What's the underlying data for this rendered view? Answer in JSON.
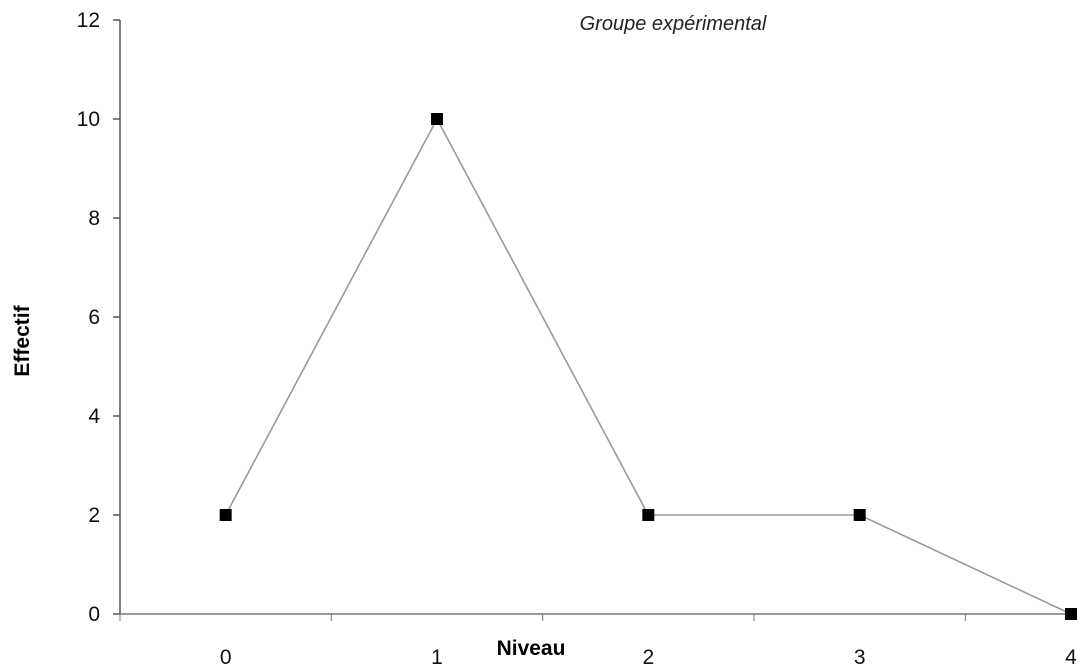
{
  "chart_data": {
    "type": "line",
    "title": "Groupe expérimental",
    "xlabel": "Niveau",
    "ylabel": "Effectif",
    "x": [
      0,
      1,
      2,
      3,
      4
    ],
    "x_tick_labels": [
      "0",
      "1",
      "2",
      "3",
      "4"
    ],
    "y_tick_labels": [
      "0",
      "2",
      "4",
      "6",
      "8",
      "10",
      "12"
    ],
    "ylim": [
      0,
      12
    ],
    "y_ticks": [
      0,
      2,
      4,
      6,
      8,
      10,
      12
    ],
    "series": [
      {
        "values": [
          2,
          10,
          2,
          2,
          0
        ],
        "marker": "square",
        "line_color": "#9a9a9a",
        "marker_color": "#000000"
      }
    ],
    "grid": false,
    "legend": "none"
  }
}
